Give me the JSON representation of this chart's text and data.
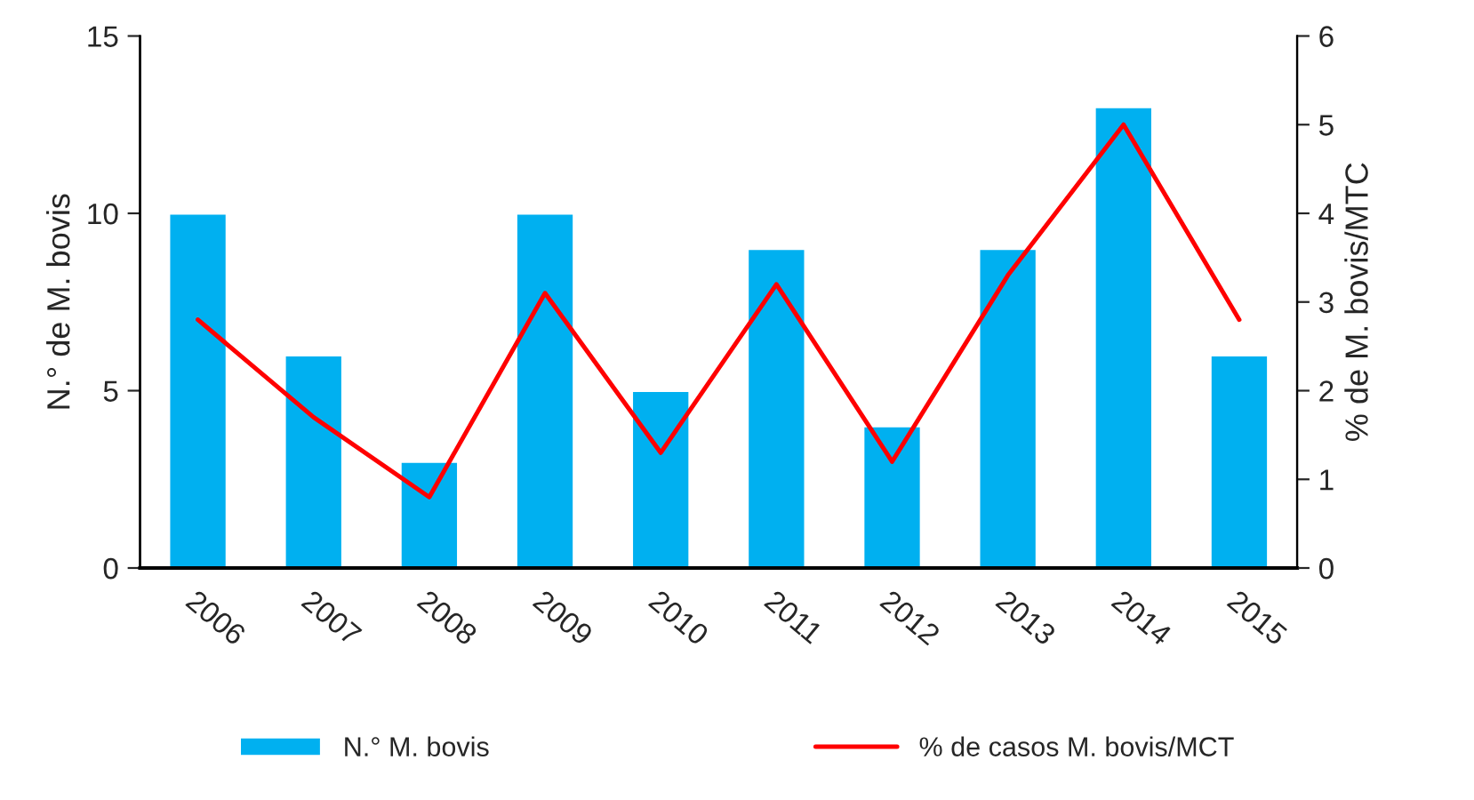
{
  "chart_data": {
    "type": "bar",
    "categories": [
      "2006",
      "2007",
      "2008",
      "2009",
      "2010",
      "2011",
      "2012",
      "2013",
      "2014",
      "2015"
    ],
    "ylabel": "N.° de M. bovis",
    "y2label": "% de M. bovis/MTC",
    "ylim": [
      0,
      15
    ],
    "yticks": [
      0,
      5,
      10,
      15
    ],
    "y2lim": [
      0,
      6
    ],
    "y2ticks": [
      0,
      1,
      2,
      3,
      4,
      5,
      6
    ],
    "series": [
      {
        "name": "N.° M. bovis",
        "color": "#00b0f0",
        "values": [
          10,
          6,
          3,
          10,
          5,
          9,
          4,
          9,
          13,
          6
        ]
      },
      {
        "name": "% de casos M. bovis/MCT",
        "type": "line",
        "axis": "y2",
        "color": "#ff0000",
        "values": [
          2.8,
          1.7,
          0.8,
          3.1,
          1.3,
          3.2,
          1.2,
          3.3,
          5.0,
          2.8
        ]
      }
    ],
    "legend": "bottom",
    "grid": false,
    "marker": "none",
    "line_style": "solid"
  }
}
